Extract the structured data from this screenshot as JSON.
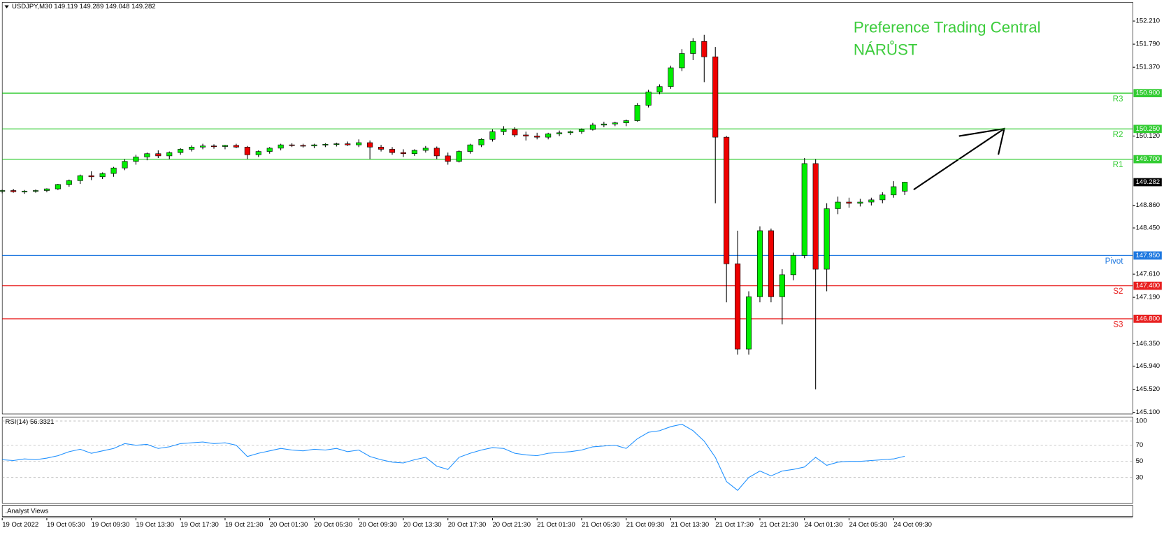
{
  "chart_data": {
    "type": "candlestick",
    "title": "USDJPY,M30  149.119 149.289 149.048 149.282",
    "annotations": [
      "Preference Trading Central",
      "NÁRŮST"
    ],
    "footer": ".Analyst Views",
    "bull_color": "#00ee00",
    "bear_color": "#ee0000",
    "categories": [
      "19 Oct 2022",
      null,
      null,
      null,
      "19 Oct 05:30",
      null,
      null,
      null,
      "19 Oct 09:30",
      null,
      null,
      null,
      "19 Oct 13:30",
      null,
      null,
      null,
      "19 Oct 17:30",
      null,
      null,
      null,
      "19 Oct 21:30",
      null,
      null,
      null,
      "20 Oct 01:30",
      null,
      null,
      null,
      "20 Oct 05:30",
      null,
      null,
      null,
      "20 Oct 09:30",
      null,
      null,
      null,
      "20 Oct 13:30",
      null,
      null,
      null,
      "20 Oct 17:30",
      null,
      null,
      null,
      "20 Oct 21:30",
      null,
      null,
      null,
      "21 Oct 01:30",
      null,
      null,
      null,
      "21 Oct 05:30",
      null,
      null,
      null,
      "21 Oct 09:30",
      null,
      null,
      null,
      "21 Oct 13:30",
      null,
      null,
      null,
      "21 Oct 17:30",
      null,
      null,
      null,
      "21 Oct 21:30",
      null,
      null,
      null,
      "24 Oct 01:30",
      null,
      null,
      null,
      "24 Oct 05:30",
      null,
      null,
      null,
      "24 Oct 09:30",
      null
    ],
    "ohlc": [
      [
        149.12,
        149.15,
        149.08,
        149.13
      ],
      [
        149.13,
        149.16,
        149.09,
        149.11
      ],
      [
        149.11,
        149.14,
        149.07,
        149.12
      ],
      [
        149.12,
        149.15,
        149.09,
        149.13
      ],
      [
        149.13,
        149.17,
        149.1,
        149.16
      ],
      [
        149.16,
        149.25,
        149.14,
        149.24
      ],
      [
        149.24,
        149.33,
        149.2,
        149.31
      ],
      [
        149.31,
        149.42,
        149.25,
        149.4
      ],
      [
        149.4,
        149.48,
        149.32,
        149.38
      ],
      [
        149.38,
        149.46,
        149.34,
        149.44
      ],
      [
        149.44,
        149.56,
        149.38,
        149.54
      ],
      [
        149.54,
        149.7,
        149.5,
        149.66
      ],
      [
        149.66,
        149.78,
        149.6,
        149.74
      ],
      [
        149.74,
        149.82,
        149.68,
        149.8
      ],
      [
        149.8,
        149.86,
        149.72,
        149.76
      ],
      [
        149.76,
        149.84,
        149.7,
        149.82
      ],
      [
        149.82,
        149.9,
        149.78,
        149.88
      ],
      [
        149.88,
        149.95,
        149.84,
        149.92
      ],
      [
        149.92,
        149.98,
        149.88,
        149.94
      ],
      [
        149.94,
        149.97,
        149.89,
        149.93
      ],
      [
        149.93,
        149.96,
        149.88,
        149.95
      ],
      [
        149.95,
        149.98,
        149.9,
        149.92
      ],
      [
        149.92,
        149.94,
        149.7,
        149.78
      ],
      [
        149.78,
        149.86,
        149.74,
        149.84
      ],
      [
        149.84,
        149.92,
        149.8,
        149.9
      ],
      [
        149.9,
        149.98,
        149.86,
        149.96
      ],
      [
        149.96,
        149.99,
        149.92,
        149.95
      ],
      [
        149.95,
        149.98,
        149.91,
        149.94
      ],
      [
        149.94,
        149.98,
        149.9,
        149.96
      ],
      [
        149.96,
        149.99,
        149.92,
        149.97
      ],
      [
        149.97,
        150,
        149.93,
        149.98
      ],
      [
        149.98,
        150.02,
        149.94,
        149.96
      ],
      [
        149.96,
        150.06,
        149.92,
        150
      ],
      [
        150,
        150.04,
        149.7,
        149.92
      ],
      [
        149.92,
        149.96,
        149.84,
        149.88
      ],
      [
        149.88,
        149.92,
        149.78,
        149.82
      ],
      [
        149.82,
        149.88,
        149.74,
        149.8
      ],
      [
        149.8,
        149.88,
        149.76,
        149.86
      ],
      [
        149.86,
        149.94,
        149.82,
        149.9
      ],
      [
        149.9,
        149.93,
        149.7,
        149.76
      ],
      [
        149.76,
        149.82,
        149.6,
        149.66
      ],
      [
        149.66,
        149.86,
        149.64,
        149.84
      ],
      [
        149.84,
        149.98,
        149.8,
        149.96
      ],
      [
        149.96,
        150.08,
        149.92,
        150.06
      ],
      [
        150.06,
        150.24,
        150.02,
        150.2
      ],
      [
        150.2,
        150.3,
        150.14,
        150.24
      ],
      [
        150.24,
        150.28,
        150.1,
        150.14
      ],
      [
        150.14,
        150.2,
        150.04,
        150.12
      ],
      [
        150.12,
        150.18,
        150.06,
        150.1
      ],
      [
        150.1,
        150.18,
        150.06,
        150.16
      ],
      [
        150.16,
        150.22,
        150.12,
        150.18
      ],
      [
        150.18,
        150.22,
        150.14,
        150.2
      ],
      [
        150.2,
        150.26,
        150.16,
        150.24
      ],
      [
        150.24,
        150.36,
        150.22,
        150.32
      ],
      [
        150.32,
        150.38,
        150.28,
        150.34
      ],
      [
        150.34,
        150.38,
        150.3,
        150.36
      ],
      [
        150.36,
        150.42,
        150.3,
        150.4
      ],
      [
        150.4,
        150.72,
        150.38,
        150.68
      ],
      [
        150.68,
        150.96,
        150.64,
        150.92
      ],
      [
        150.92,
        151.06,
        150.88,
        151.02
      ],
      [
        151.02,
        151.4,
        150.98,
        151.36
      ],
      [
        151.36,
        151.7,
        151.3,
        151.62
      ],
      [
        151.62,
        151.9,
        151.5,
        151.84
      ],
      [
        151.84,
        151.96,
        151.1,
        151.56
      ],
      [
        151.56,
        151.74,
        148.9,
        150.1
      ],
      [
        150.1,
        150.12,
        147.1,
        147.8
      ],
      [
        147.8,
        148.4,
        146.15,
        146.25
      ],
      [
        146.25,
        147.3,
        146.15,
        147.2
      ],
      [
        147.2,
        148.48,
        147.1,
        148.4
      ],
      [
        148.4,
        148.44,
        147.1,
        147.2
      ],
      [
        147.2,
        147.7,
        146.7,
        147.6
      ],
      [
        147.6,
        148,
        147.5,
        147.95
      ],
      [
        147.95,
        149.72,
        147.9,
        149.62
      ],
      [
        149.62,
        149.7,
        145.52,
        147.7
      ],
      [
        147.7,
        148.9,
        147.3,
        148.8
      ],
      [
        148.8,
        149.02,
        148.7,
        148.92
      ],
      [
        148.92,
        149,
        148.82,
        148.9
      ],
      [
        148.9,
        148.98,
        148.84,
        148.92
      ],
      [
        148.92,
        149,
        148.86,
        148.96
      ],
      [
        148.96,
        149.1,
        148.9,
        149.05
      ],
      [
        149.05,
        149.3,
        149,
        149.2
      ],
      [
        149.119,
        149.289,
        149.048,
        149.282
      ]
    ],
    "ylim": [
      145.07,
      152.55
    ],
    "yticks": [
      {
        "value": 152.21,
        "label": "152.210"
      },
      {
        "value": 151.79,
        "label": "151.790"
      },
      {
        "value": 151.37,
        "label": "151.370"
      },
      {
        "value": 150.12,
        "label": "150.120"
      },
      {
        "value": 148.86,
        "label": "148.860"
      },
      {
        "value": 148.45,
        "label": "148.450"
      },
      {
        "value": 147.61,
        "label": "147.610"
      },
      {
        "value": 147.19,
        "label": "147.190"
      },
      {
        "value": 146.35,
        "label": "146.350"
      },
      {
        "value": 145.94,
        "label": "145.940"
      },
      {
        "value": 145.52,
        "label": "145.520"
      },
      {
        "value": 145.1,
        "label": "145.100"
      }
    ],
    "levels": [
      {
        "name": "R3",
        "value": 150.9,
        "label": "150.900",
        "color": "#33cc33"
      },
      {
        "name": "R2",
        "value": 150.25,
        "label": "150.250",
        "color": "#33cc33"
      },
      {
        "name": "R1",
        "value": 149.7,
        "label": "149.700",
        "color": "#33cc33"
      },
      {
        "name": "Pivot",
        "value": 147.95,
        "label": "147.950",
        "color": "#1e78e0"
      },
      {
        "name": "S2",
        "value": 147.4,
        "label": "147.400",
        "color": "#e82020"
      },
      {
        "name": "S3",
        "value": 146.8,
        "label": "146.800",
        "color": "#e82020"
      }
    ],
    "last_price": {
      "value": 149.282,
      "label": "149.282"
    },
    "rsi": {
      "name": "RSI(14) 56.3321",
      "color": "#1e90ff",
      "values": [
        52,
        51,
        53,
        52,
        54,
        57,
        62,
        65,
        60,
        63,
        66,
        72,
        70,
        71,
        66,
        68,
        72,
        73,
        74,
        72,
        73,
        70,
        56,
        60,
        63,
        66,
        64,
        63,
        65,
        64,
        66,
        62,
        64,
        56,
        52,
        49,
        48,
        52,
        55,
        44,
        40,
        55,
        60,
        64,
        67,
        66,
        60,
        58,
        57,
        60,
        61,
        62,
        64,
        68,
        69,
        70,
        66,
        78,
        86,
        88,
        93,
        96,
        88,
        75,
        55,
        25,
        14,
        30,
        38,
        32,
        38,
        40,
        43,
        55,
        45,
        49,
        50,
        50,
        51,
        52,
        53,
        56.3321
      ],
      "ylim": [
        0,
        105
      ],
      "yticks": [
        100,
        70,
        50,
        30
      ]
    }
  }
}
